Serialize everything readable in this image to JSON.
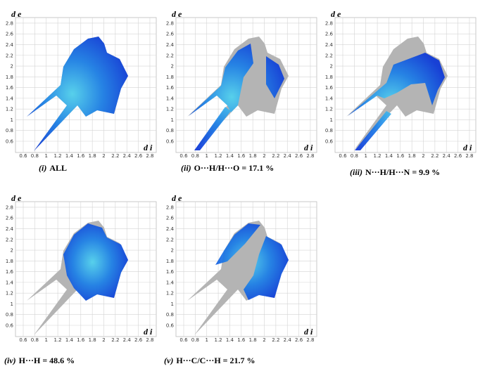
{
  "xticks": [
    0.6,
    0.8,
    1.0,
    1.2,
    1.4,
    1.6,
    1.8,
    2.0,
    2.2,
    2.4,
    2.6,
    2.8
  ],
  "yticks": [
    0.6,
    0.8,
    1.0,
    1.2,
    1.4,
    1.6,
    1.8,
    2.0,
    2.2,
    2.4,
    2.6,
    2.8
  ],
  "x_label": "d i",
  "y_label": "d e",
  "panels": [
    {
      "numeral": "(i)",
      "text": "ALL"
    },
    {
      "numeral": "(ii)",
      "text": "O···H/H···O = 17.1 %"
    },
    {
      "numeral": "(iii)",
      "text": "N···H/H···N = 9.9 %"
    },
    {
      "numeral": "(iv)",
      "text": "H···H = 48.6 %"
    },
    {
      "numeral": "(v)",
      "text": "H···C/C···H = 21.7 %"
    }
  ]
}
